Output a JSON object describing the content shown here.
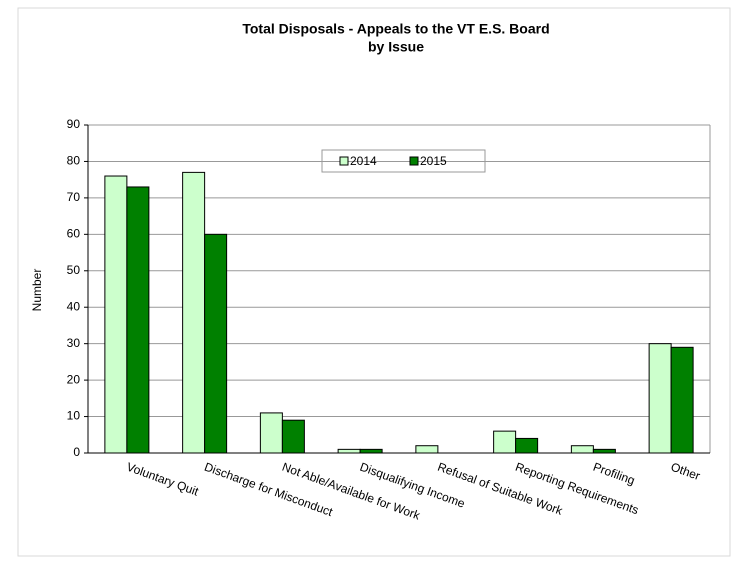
{
  "chart_data": {
    "type": "bar",
    "title": [
      "Total Disposals -  Appeals to the VT E.S. Board",
      "by Issue"
    ],
    "y_label": "Number",
    "categories": [
      "Voluntary Quit",
      "Discharge for Misconduct",
      "Not Able/Available for Work",
      "Disqualifying Income",
      "Refusal of Suitable Work",
      "Reporting Requirements",
      "Profiling",
      "Other"
    ],
    "series": [
      {
        "name": "2014",
        "color": "#ccffcc",
        "values": [
          76,
          77,
          11,
          1,
          2,
          6,
          2,
          30
        ]
      },
      {
        "name": "2015",
        "color": "#008000",
        "values": [
          73,
          60,
          9,
          1,
          0,
          4,
          1,
          29
        ]
      }
    ],
    "ylim": [
      0,
      90
    ],
    "yticks": [
      0,
      10,
      20,
      30,
      40,
      50,
      60,
      70,
      80,
      90
    ],
    "grid": true,
    "legend": "top"
  }
}
